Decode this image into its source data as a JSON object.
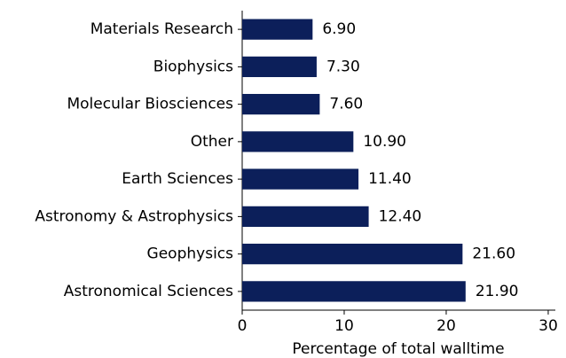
{
  "chart_data": {
    "type": "barh",
    "categories": [
      "Materials Research",
      "Biophysics",
      "Molecular Biosciences",
      "Other",
      "Earth Sciences",
      "Astronomy & Astrophysics",
      "Geophysics",
      "Astronomical Sciences"
    ],
    "values": [
      6.9,
      7.3,
      7.6,
      10.9,
      11.4,
      12.4,
      21.6,
      21.9
    ],
    "value_labels": [
      "6.90",
      "7.30",
      "7.60",
      "10.90",
      "11.40",
      "12.40",
      "21.60",
      "21.90"
    ],
    "color": "#0c1f5a",
    "xlabel": "Percentage of total walltime",
    "xlim": [
      0,
      30.7
    ],
    "xticks": [
      0,
      10,
      20,
      30
    ]
  }
}
